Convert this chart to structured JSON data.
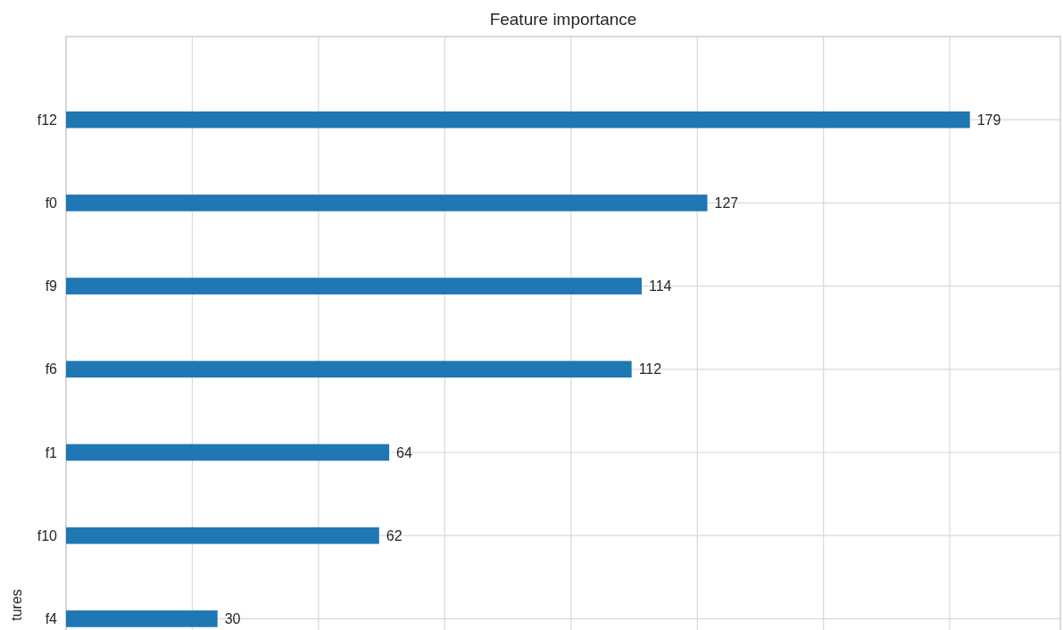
{
  "chart_data": {
    "type": "bar",
    "orientation": "horizontal",
    "title": "Feature importance",
    "ylabel": "tures",
    "categories": [
      "f12",
      "f0",
      "f9",
      "f6",
      "f1",
      "f10",
      "f4"
    ],
    "values": [
      179,
      127,
      114,
      112,
      64,
      62,
      30
    ],
    "color": "#1f77b4",
    "data_labels": true,
    "grid": true,
    "tick_labels": "y",
    "xlim": [
      0,
      196.9
    ],
    "xticks": [
      {
        "value": 0,
        "label": null
      },
      {
        "value": 25,
        "label": null
      },
      {
        "value": 50,
        "label": null
      },
      {
        "value": 75,
        "label": null
      },
      {
        "value": 100,
        "label": null
      },
      {
        "value": 125,
        "label": null
      },
      {
        "value": 150,
        "label": null
      },
      {
        "value": 175,
        "label": null
      }
    ]
  }
}
